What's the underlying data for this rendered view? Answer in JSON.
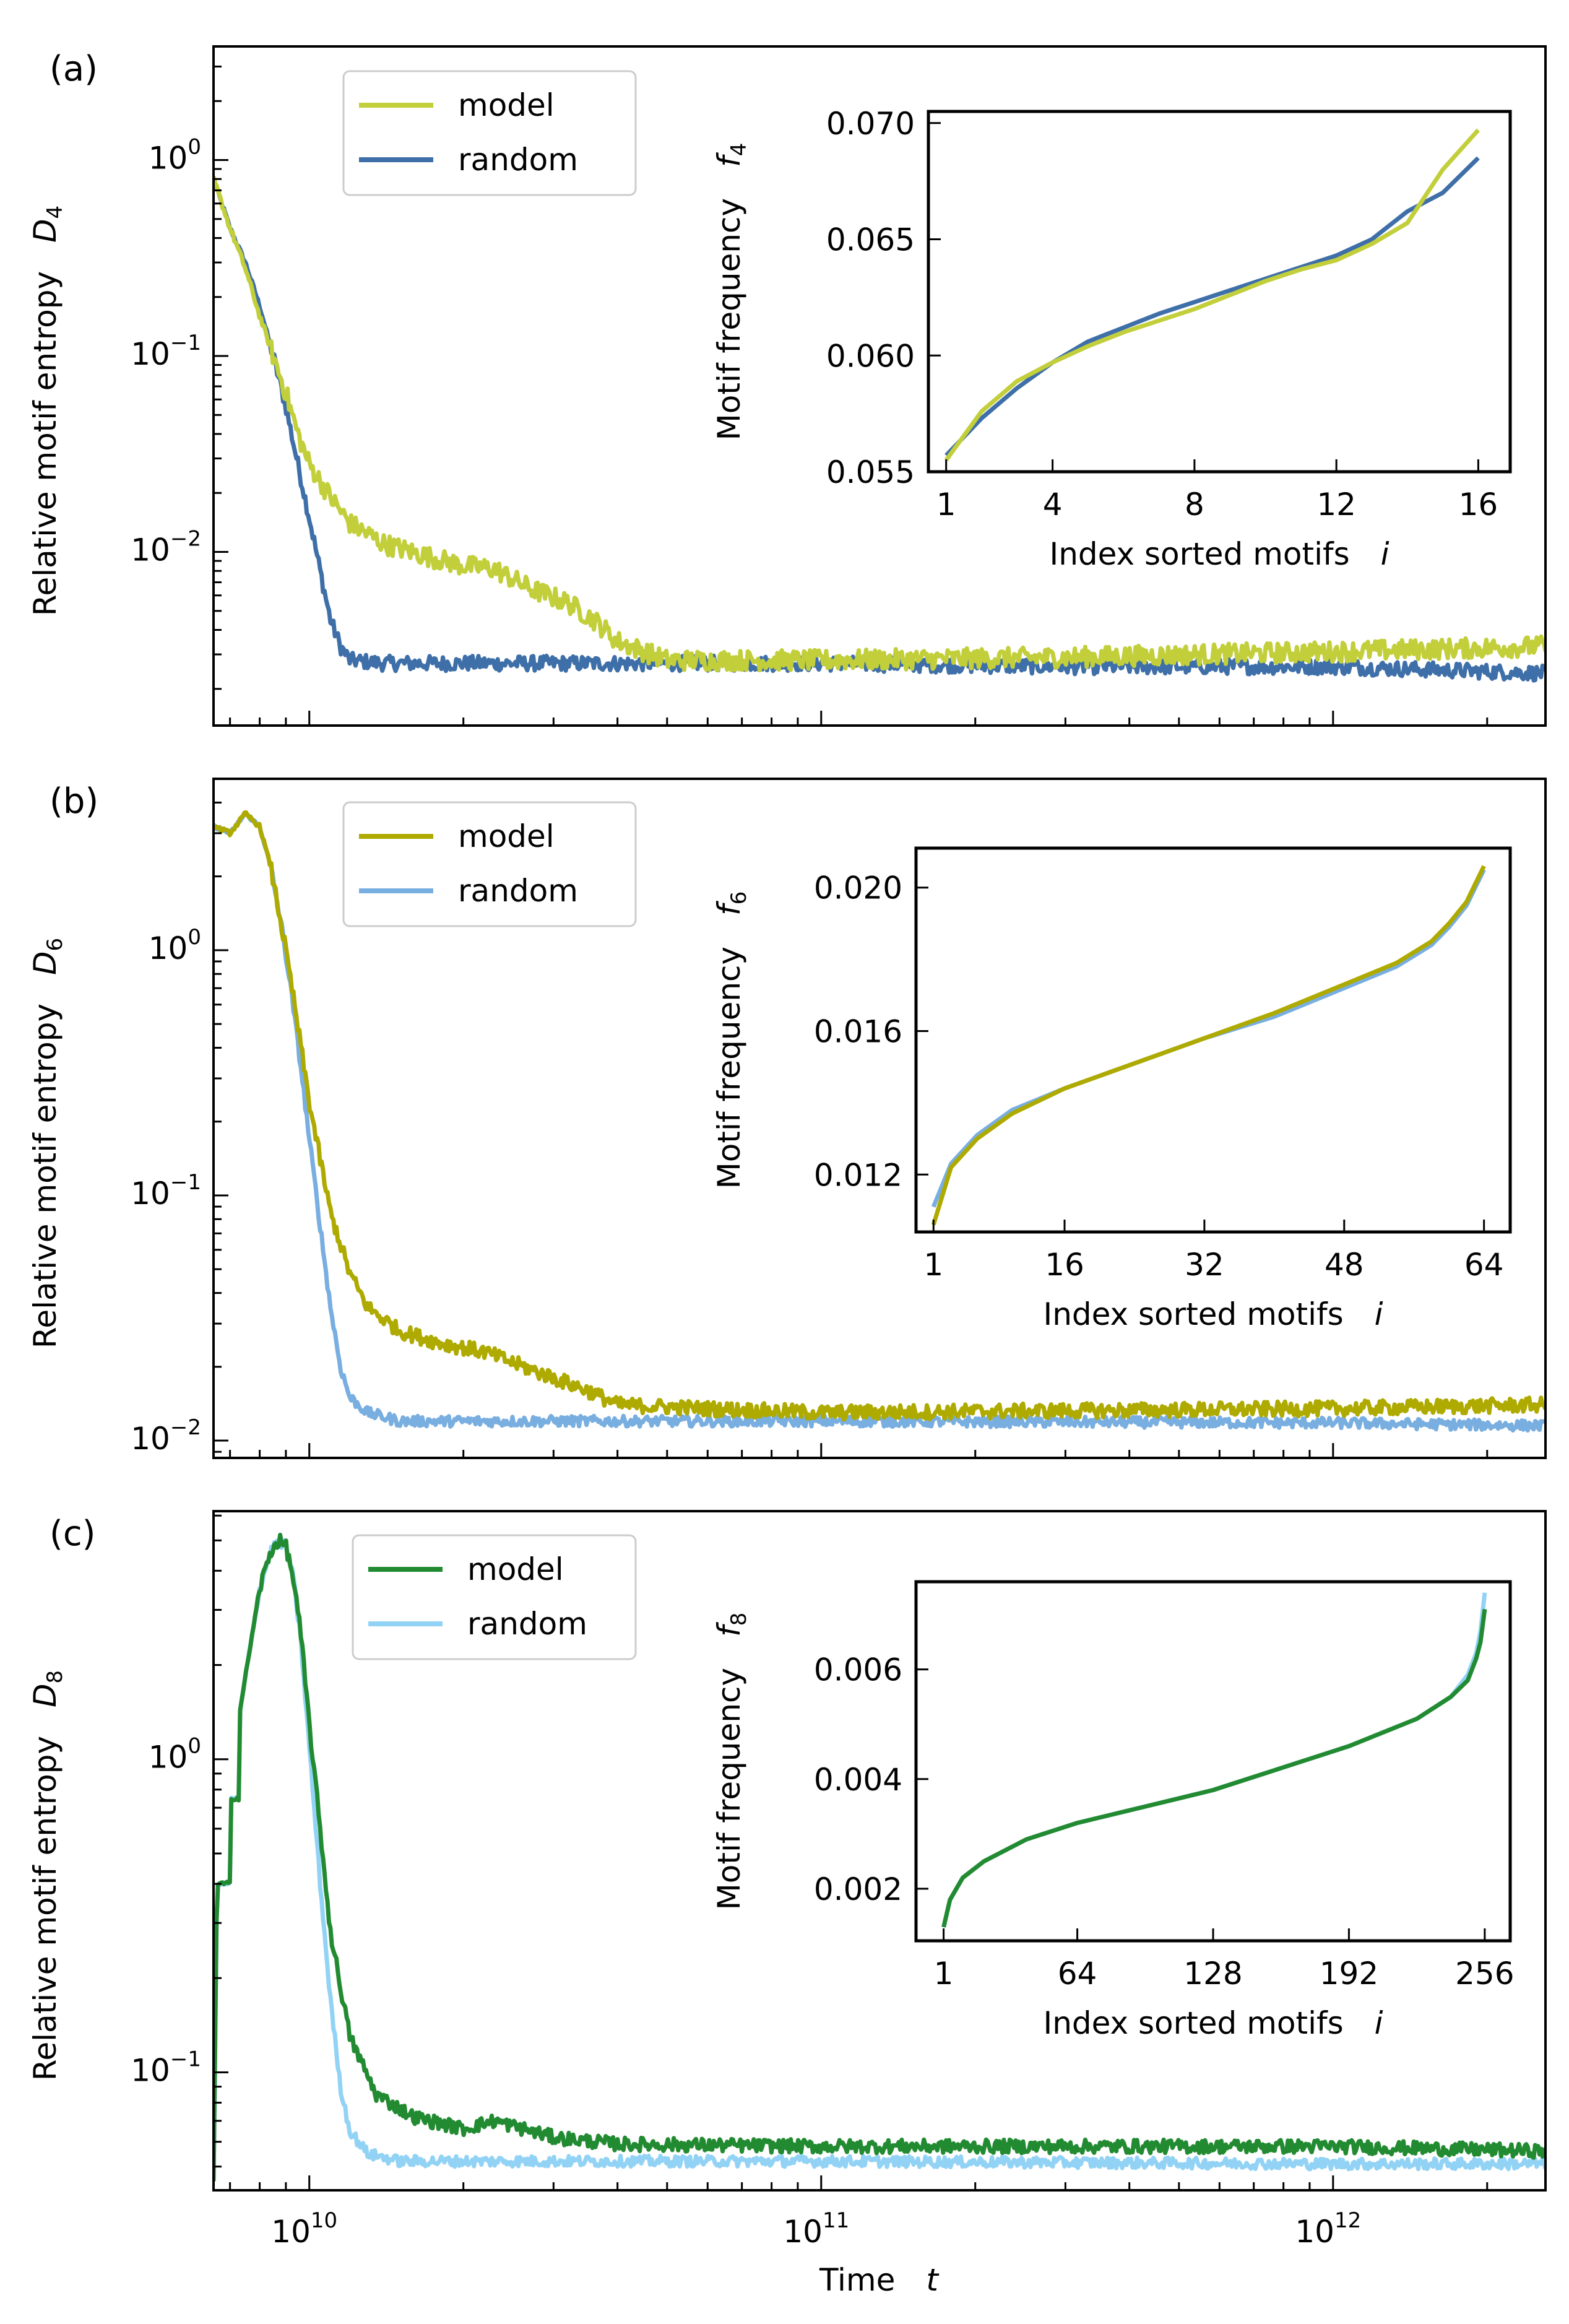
{
  "figure": {
    "xlabel": "Time",
    "xlabel_symbol": "t",
    "ylabel": "Relative motif entropy",
    "inset_xlabel": "Index sorted motifs",
    "inset_xlabel_symbol": "i",
    "inset_ylabel": "Motif frequency"
  },
  "chart_data": [
    {
      "type": "line",
      "panel": "(a)",
      "ylabel": "Relative motif entropy",
      "ysymbol": "D",
      "ysub": "4",
      "xlabel": "",
      "xscale": "log",
      "yscale": "log",
      "xlim": [
        6500000000.0,
        2600000000000.0
      ],
      "ylim": [
        0.0013,
        3.8
      ],
      "xticks": [
        {
          "v": 10000000000.0,
          "base": "10",
          "exp": "10"
        },
        {
          "v": 100000000000.0,
          "base": "10",
          "exp": "11"
        },
        {
          "v": 1000000000000.0,
          "base": "10",
          "exp": "12"
        }
      ],
      "yticks": [
        {
          "v": 1,
          "base": "10",
          "exp": "0"
        },
        {
          "v": 0.1,
          "base": "10",
          "exp": "−1"
        },
        {
          "v": 0.01,
          "base": "10",
          "exp": "−2"
        }
      ],
      "legend_position": "top-left",
      "series": [
        {
          "name": "random",
          "color": "#3e6fa8",
          "x": [
            6500000000.0,
            7000000000.0,
            7500000000.0,
            8000000000.0,
            8500000000.0,
            9000000000.0,
            9500000000.0,
            10000000000.0,
            10500000000.0,
            11000000000.0,
            11500000000.0,
            12000000000.0,
            14000000000.0,
            20000000000.0,
            40000000000.0,
            100000000000.0,
            300000000000.0,
            1000000000000.0,
            2600000000000.0
          ],
          "y": [
            0.8,
            0.45,
            0.3,
            0.18,
            0.1,
            0.055,
            0.028,
            0.015,
            0.008,
            0.0045,
            0.0033,
            0.0028,
            0.0027,
            0.0027,
            0.0027,
            0.0027,
            0.0026,
            0.0026,
            0.0024
          ],
          "noise": 0.09
        },
        {
          "name": "model",
          "color": "#c2cf3b",
          "x": [
            6500000000.0,
            7000000000.0,
            7500000000.0,
            8000000000.0,
            8500000000.0,
            9000000000.0,
            9500000000.0,
            10000000000.0,
            11000000000.0,
            12000000000.0,
            14000000000.0,
            17000000000.0,
            20000000000.0,
            23000000000.0,
            27000000000.0,
            32000000000.0,
            36000000000.0,
            40000000000.0,
            50000000000.0,
            100000000000.0,
            300000000000.0,
            1000000000000.0,
            2600000000000.0
          ],
          "y": [
            0.8,
            0.45,
            0.28,
            0.16,
            0.1,
            0.065,
            0.04,
            0.028,
            0.019,
            0.014,
            0.011,
            0.0095,
            0.0085,
            0.0082,
            0.0065,
            0.0055,
            0.0045,
            0.0035,
            0.0028,
            0.0028,
            0.0029,
            0.0031,
            0.0033
          ],
          "noise": 0.12
        }
      ],
      "inset": {
        "ylabel": "Motif frequency",
        "ysymbol": "f",
        "ysub": "4",
        "xlabel": "Index sorted motifs",
        "xlim": [
          0.5,
          16.9
        ],
        "ylim": [
          0.055,
          0.0705
        ],
        "xticks": [
          "1",
          "4",
          "8",
          "12",
          "16"
        ],
        "xtick_values": [
          1,
          4,
          8,
          12,
          16
        ],
        "yticks": [
          "0.055",
          "0.060",
          "0.065",
          "0.070"
        ],
        "ytick_values": [
          0.055,
          0.06,
          0.065,
          0.07
        ],
        "series": [
          {
            "name": "random",
            "color": "#3e6fa8",
            "x": [
              1,
              2,
              3,
              4,
              5,
              6,
              7,
              8,
              9,
              10,
              11,
              12,
              13,
              14,
              15,
              16
            ],
            "y": [
              0.0557,
              0.0573,
              0.0586,
              0.0597,
              0.0606,
              0.0612,
              0.0618,
              0.0623,
              0.0628,
              0.0633,
              0.0638,
              0.0643,
              0.065,
              0.0662,
              0.067,
              0.0685
            ]
          },
          {
            "name": "model",
            "color": "#c2cf3b",
            "x": [
              1,
              2,
              3,
              4,
              5,
              6,
              7,
              8,
              9,
              10,
              11,
              12,
              13,
              14,
              15,
              16
            ],
            "y": [
              0.0555,
              0.0576,
              0.0589,
              0.0597,
              0.0604,
              0.061,
              0.0615,
              0.062,
              0.0626,
              0.0632,
              0.0637,
              0.0641,
              0.0648,
              0.0657,
              0.068,
              0.0697
            ]
          }
        ]
      }
    },
    {
      "type": "line",
      "panel": "(b)",
      "ylabel": "Relative motif entropy",
      "ysymbol": "D",
      "ysub": "6",
      "xlabel": "",
      "xscale": "log",
      "yscale": "log",
      "xlim": [
        6500000000.0,
        2600000000000.0
      ],
      "ylim": [
        0.0085,
        5.0
      ],
      "xticks": [
        {
          "v": 10000000000.0,
          "base": "10",
          "exp": "10"
        },
        {
          "v": 100000000000.0,
          "base": "10",
          "exp": "11"
        },
        {
          "v": 1000000000000.0,
          "base": "10",
          "exp": "12"
        }
      ],
      "yticks": [
        {
          "v": 1,
          "base": "10",
          "exp": "0"
        },
        {
          "v": 0.1,
          "base": "10",
          "exp": "−1"
        },
        {
          "v": 0.01,
          "base": "10",
          "exp": "−2"
        }
      ],
      "legend_position": "top-left",
      "series": [
        {
          "name": "random",
          "color": "#78aee0",
          "x": [
            6500000000.0,
            7000000000.0,
            7500000000.0,
            8000000000.0,
            8400000000.0,
            8800000000.0,
            9200000000.0,
            9600000000.0,
            10000000000.0,
            10500000000.0,
            11000000000.0,
            11500000000.0,
            12000000000.0,
            13000000000.0,
            15000000000.0,
            20000000000.0,
            40000000000.0,
            100000000000.0,
            1000000000000.0,
            2600000000000.0
          ],
          "y": [
            3.2,
            3.0,
            3.6,
            3.2,
            2.2,
            1.3,
            0.7,
            0.35,
            0.17,
            0.075,
            0.035,
            0.02,
            0.015,
            0.013,
            0.012,
            0.012,
            0.012,
            0.012,
            0.0118,
            0.0115
          ],
          "noise": 0.05
        },
        {
          "name": "model",
          "color": "#aeaa00",
          "x": [
            6500000000.0,
            7000000000.0,
            7500000000.0,
            8000000000.0,
            8400000000.0,
            8800000000.0,
            9200000000.0,
            9600000000.0,
            10000000000.0,
            10500000000.0,
            11000000000.0,
            12000000000.0,
            13000000000.0,
            15000000000.0,
            18000000000.0,
            22000000000.0,
            28000000000.0,
            35000000000.0,
            40000000000.0,
            60000000000.0,
            100000000000.0,
            1000000000000.0,
            2600000000000.0
          ],
          "y": [
            3.2,
            3.0,
            3.6,
            3.2,
            2.2,
            1.3,
            0.75,
            0.42,
            0.24,
            0.14,
            0.085,
            0.048,
            0.035,
            0.028,
            0.025,
            0.023,
            0.019,
            0.016,
            0.014,
            0.0135,
            0.013,
            0.0135,
            0.014
          ],
          "noise": 0.07
        }
      ],
      "inset": {
        "ylabel": "Motif frequency",
        "ysymbol": "f",
        "ysub": "6",
        "xlabel": "Index sorted motifs",
        "xlim": [
          -1,
          67
        ],
        "ylim": [
          0.0104,
          0.0211
        ],
        "xticks": [
          "1",
          "16",
          "32",
          "48",
          "64"
        ],
        "xtick_values": [
          1,
          16,
          32,
          48,
          64
        ],
        "yticks": [
          "0.012",
          "0.016",
          "0.020"
        ],
        "ytick_values": [
          0.012,
          0.016,
          0.02
        ],
        "series": [
          {
            "name": "random",
            "color": "#78aee0",
            "x": [
              1,
              3,
              6,
              10,
              16,
              24,
              32,
              40,
              48,
              54,
              58,
              60,
              62,
              63,
              64
            ],
            "y": [
              0.0111,
              0.0123,
              0.0131,
              0.0138,
              0.0144,
              0.0151,
              0.0158,
              0.0164,
              0.0172,
              0.0178,
              0.0184,
              0.0189,
              0.0195,
              0.02,
              0.0205
            ]
          },
          {
            "name": "model",
            "color": "#aeaa00",
            "x": [
              1,
              3,
              6,
              10,
              16,
              24,
              32,
              40,
              48,
              54,
              58,
              60,
              62,
              63,
              64
            ],
            "y": [
              0.0106,
              0.0122,
              0.013,
              0.0137,
              0.0144,
              0.0151,
              0.0158,
              0.0165,
              0.0173,
              0.0179,
              0.0185,
              0.019,
              0.0196,
              0.0201,
              0.0206
            ]
          }
        ]
      }
    },
    {
      "type": "line",
      "panel": "(c)",
      "ylabel": "Relative motif entropy",
      "ysymbol": "D",
      "ysub": "8",
      "xlabel": "Time",
      "xscale": "log",
      "yscale": "log",
      "xlim": [
        6500000000.0,
        2600000000000.0
      ],
      "ylim": [
        0.042,
        6.2
      ],
      "xticks": [
        {
          "v": 10000000000.0,
          "base": "10",
          "exp": "10"
        },
        {
          "v": 100000000000.0,
          "base": "10",
          "exp": "11"
        },
        {
          "v": 1000000000000.0,
          "base": "10",
          "exp": "12"
        }
      ],
      "yticks": [
        {
          "v": 1,
          "base": "10",
          "exp": "0"
        },
        {
          "v": 0.1,
          "base": "10",
          "exp": "−1"
        }
      ],
      "legend_position": "top-left",
      "series": [
        {
          "name": "random",
          "color": "#92d3f5",
          "x": [
            6500000000.0,
            6600000000.0,
            7000000000.0,
            7010000000.0,
            7300000000.0,
            7310000000.0,
            7600000000.0,
            8000000000.0,
            8400000000.0,
            8700000000.0,
            9000000000.0,
            9300000000.0,
            9600000000.0,
            10000000000.0,
            10500000000.0,
            11000000000.0,
            11500000000.0,
            12000000000.0,
            13000000000.0,
            15000000000.0,
            20000000000.0,
            100000000000.0,
            1000000000000.0,
            2600000000000.0
          ],
          "y": [
            0.045,
            0.4,
            0.4,
            0.75,
            0.75,
            1.4,
            2.1,
            3.5,
            4.6,
            5.0,
            4.8,
            3.8,
            2.5,
            1.1,
            0.4,
            0.17,
            0.09,
            0.065,
            0.055,
            0.052,
            0.052,
            0.052,
            0.051,
            0.051
          ],
          "noise": 0.04
        },
        {
          "name": "model",
          "color": "#228b32",
          "x": [
            6500000000.0,
            6600000000.0,
            7000000000.0,
            7010000000.0,
            7300000000.0,
            7310000000.0,
            7600000000.0,
            8000000000.0,
            8400000000.0,
            8700000000.0,
            9000000000.0,
            9300000000.0,
            9600000000.0,
            10000000000.0,
            10500000000.0,
            11000000000.0,
            12000000000.0,
            13500000000.0,
            16000000000.0,
            20000000000.0,
            23000000000.0,
            30000000000.0,
            40000000000.0,
            100000000000.0,
            1000000000000.0,
            2600000000000.0
          ],
          "y": [
            0.045,
            0.4,
            0.4,
            0.75,
            0.75,
            1.4,
            2.1,
            3.5,
            4.6,
            5.0,
            4.8,
            3.8,
            2.6,
            1.3,
            0.6,
            0.28,
            0.13,
            0.085,
            0.072,
            0.066,
            0.07,
            0.062,
            0.059,
            0.058,
            0.058,
            0.056
          ],
          "noise": 0.05
        }
      ],
      "inset": {
        "ylabel": "Motif frequency",
        "ysymbol": "f",
        "ysub": "8",
        "xlabel": "Index sorted motifs",
        "xlim": [
          -12,
          268
        ],
        "ylim": [
          0.00105,
          0.0076
        ],
        "xticks": [
          "1",
          "64",
          "128",
          "192",
          "256"
        ],
        "xtick_values": [
          1,
          64,
          128,
          192,
          256
        ],
        "yticks": [
          "0.002",
          "0.004",
          "0.006"
        ],
        "ytick_values": [
          0.002,
          0.004,
          0.006
        ],
        "series": [
          {
            "name": "random",
            "color": "#92d3f5",
            "x": [
              1,
              4,
              10,
              20,
              40,
              64,
              96,
              128,
              160,
              192,
              224,
              240,
              248,
              252,
              254,
              256
            ],
            "y": [
              0.0013,
              0.0018,
              0.0022,
              0.0025,
              0.0029,
              0.0032,
              0.0035,
              0.0038,
              0.0042,
              0.0046,
              0.0051,
              0.0055,
              0.0059,
              0.0063,
              0.0067,
              0.0074
            ]
          },
          {
            "name": "model",
            "color": "#228b32",
            "x": [
              1,
              4,
              10,
              20,
              40,
              64,
              96,
              128,
              160,
              192,
              224,
              240,
              248,
              252,
              254,
              256
            ],
            "y": [
              0.0013,
              0.0018,
              0.0022,
              0.0025,
              0.0029,
              0.0032,
              0.0035,
              0.0038,
              0.0042,
              0.0046,
              0.0051,
              0.0055,
              0.0058,
              0.0062,
              0.0065,
              0.0071
            ]
          }
        ]
      }
    }
  ]
}
